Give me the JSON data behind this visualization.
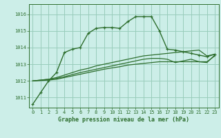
{
  "title": "Graphe pression niveau de la mer (hPa)",
  "bg_color": "#cceee8",
  "grid_color": "#99ccbb",
  "line_color": "#2d6e2d",
  "xlim": [
    -0.5,
    23.5
  ],
  "ylim": [
    1010.4,
    1016.6
  ],
  "yticks": [
    1011,
    1012,
    1013,
    1014,
    1015,
    1016
  ],
  "xticks": [
    0,
    1,
    2,
    3,
    4,
    5,
    6,
    7,
    8,
    9,
    10,
    11,
    12,
    13,
    14,
    15,
    16,
    17,
    18,
    19,
    20,
    21,
    22,
    23
  ],
  "series": [
    [
      1010.6,
      1011.3,
      1012.0,
      1012.5,
      1013.7,
      1013.9,
      1014.0,
      1014.85,
      1015.15,
      1015.2,
      1015.2,
      1015.15,
      1015.55,
      1015.85,
      1015.85,
      1015.85,
      1015.0,
      1013.9,
      1013.85,
      1013.75,
      1013.65,
      1013.55,
      1013.45,
      1013.6
    ],
    [
      1012.0,
      1012.05,
      1012.1,
      1012.2,
      1012.35,
      1012.5,
      1012.65,
      1012.75,
      1012.9,
      1013.0,
      1013.1,
      1013.2,
      1013.3,
      1013.4,
      1013.5,
      1013.55,
      1013.6,
      1013.65,
      1013.7,
      1013.75,
      1013.8,
      1013.85,
      1013.5,
      1013.6
    ],
    [
      1012.0,
      1012.05,
      1012.1,
      1012.15,
      1012.25,
      1012.38,
      1012.5,
      1012.6,
      1012.7,
      1012.8,
      1012.9,
      1013.0,
      1013.1,
      1013.2,
      1013.3,
      1013.35,
      1013.35,
      1013.3,
      1013.1,
      1013.2,
      1013.3,
      1013.15,
      1013.1,
      1013.55
    ],
    [
      1012.0,
      1012.02,
      1012.05,
      1012.1,
      1012.2,
      1012.3,
      1012.4,
      1012.5,
      1012.6,
      1012.7,
      1012.78,
      1012.85,
      1012.95,
      1013.0,
      1013.05,
      1013.1,
      1013.15,
      1013.15,
      1013.15,
      1013.15,
      1013.15,
      1013.15,
      1013.15,
      1013.5
    ]
  ]
}
